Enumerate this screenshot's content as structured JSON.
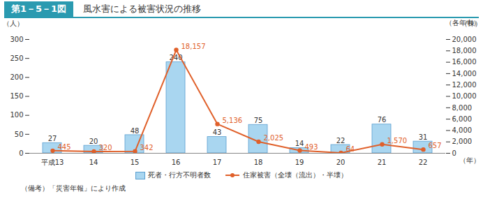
{
  "chart_data": {
    "type": "bar",
    "figure_label": "第1－5－1図",
    "title": "風水害による被害状況の推移",
    "note": "（備考）「災害年報」により作成",
    "categories": [
      "平成13",
      "14",
      "15",
      "16",
      "17",
      "18",
      "19",
      "20",
      "21",
      "22"
    ],
    "xlabel": "（年）",
    "ylabel": "（人）",
    "y2label": "（棟）",
    "annotations": [
      {
        "text": "（各年中）"
      }
    ],
    "ylim": [
      0,
      300
    ],
    "yticks": [
      0,
      50,
      100,
      150,
      200,
      250,
      300
    ],
    "y2lim": [
      0,
      20000
    ],
    "y2ticks": [
      0,
      {
        "value": 2000,
        "label": "2,000"
      },
      {
        "value": 4000,
        "label": "4,000"
      },
      {
        "value": 6000,
        "label": "6,000"
      },
      {
        "value": 8000,
        "label": "8,000"
      },
      {
        "value": 10000,
        "label": "10,000"
      },
      {
        "value": 12000,
        "label": "12,000"
      },
      {
        "value": 14000,
        "label": "14,000"
      },
      {
        "value": 16000,
        "label": "16,000"
      },
      {
        "value": 18000,
        "label": "18,000"
      },
      {
        "value": 20000,
        "label": "20,000"
      }
    ],
    "data_labels": true,
    "legend": "bottom",
    "series": [
      {
        "name": "死者・行方不明者数",
        "type": "bar",
        "color": "#a9d6f0",
        "values": [
          27,
          20,
          48,
          240,
          43,
          75,
          14,
          22,
          76,
          31
        ]
      },
      {
        "name": "住家被害（全壊（流出）・半壊）",
        "type": "line",
        "axis": "y2",
        "color": "#e0602a",
        "marker": "circle",
        "values": [
          445,
          320,
          342,
          18157,
          5136,
          2025,
          493,
          64,
          1570,
          657
        ],
        "value_labels": [
          "445",
          "320",
          "342",
          "18,157",
          "5,136",
          "2,025",
          "493",
          "64",
          "1,570",
          "657"
        ]
      }
    ]
  }
}
